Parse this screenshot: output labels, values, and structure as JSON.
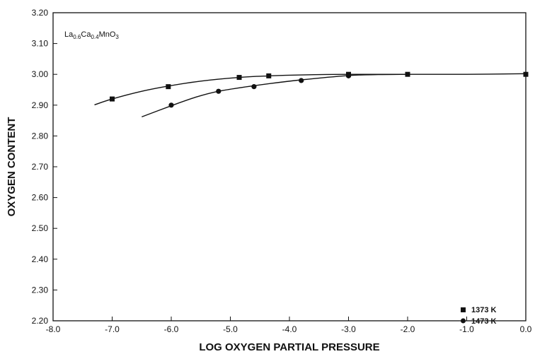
{
  "chart_data": {
    "type": "scatter",
    "annotation": {
      "main": "La",
      "sub1": "0.6",
      "mid": "Ca",
      "sub2": "0.4",
      "tail": "MnO",
      "sub3": "3"
    },
    "xlabel": "LOG OXYGEN PARTIAL PRESSURE",
    "ylabel": "OXYGEN CONTENT",
    "xlim": [
      -8.0,
      0.0
    ],
    "ylim": [
      2.2,
      3.2
    ],
    "xticks": [
      "-8.0",
      "-7.0",
      "-6.0",
      "-5.0",
      "-4.0",
      "-3.0",
      "-2.0",
      "-1.0",
      "0.0"
    ],
    "yticks": [
      "2.20",
      "2.30",
      "2.40",
      "2.50",
      "2.60",
      "2.70",
      "2.80",
      "2.90",
      "3.00",
      "3.10",
      "3.20"
    ],
    "grid": false,
    "legend_position": "bottom-right",
    "series": [
      {
        "name": "1373 K",
        "marker": "square",
        "x": [
          -7.0,
          -6.05,
          -4.85,
          -4.35,
          -3.0,
          -2.0,
          0.0
        ],
        "y": [
          2.92,
          2.96,
          2.99,
          2.995,
          3.0,
          3.0,
          3.0
        ],
        "curve_x": [
          -7.3,
          -7.0,
          -6.5,
          -6.05,
          -5.5,
          -4.85,
          -4.35,
          -3.8,
          -3.0,
          -2.0,
          -1.0,
          0.0
        ],
        "curve_y": [
          2.901,
          2.92,
          2.945,
          2.962,
          2.978,
          2.99,
          2.995,
          2.998,
          3.0,
          3.0,
          3.0,
          3.002
        ]
      },
      {
        "name": "1473 K",
        "marker": "circle",
        "x": [
          -6.0,
          -5.2,
          -4.6,
          -3.8,
          -3.0
        ],
        "y": [
          2.9,
          2.945,
          2.96,
          2.98,
          2.995
        ],
        "curve_x": [
          -6.5,
          -6.0,
          -5.6,
          -5.2,
          -4.6,
          -3.8,
          -3.0,
          -2.5,
          -2.0
        ],
        "curve_y": [
          2.862,
          2.898,
          2.925,
          2.945,
          2.963,
          2.982,
          2.996,
          2.999,
          3.0
        ]
      }
    ]
  }
}
